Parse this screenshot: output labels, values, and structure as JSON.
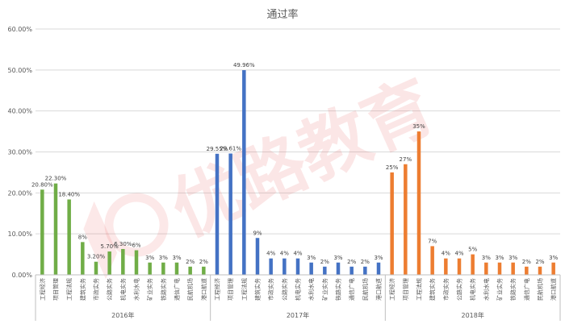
{
  "chart_data": {
    "type": "bar",
    "title": "通过率",
    "ylim": [
      0,
      60
    ],
    "y_ticks": [
      "0.00%",
      "10.00%",
      "20.00%",
      "30.00%",
      "40.00%",
      "50.00%",
      "60.00%"
    ],
    "grid": true,
    "legend": "none",
    "watermark": "优路教育",
    "groups": [
      {
        "name": "2016年",
        "color": "#70ad47",
        "categories": [
          "工程经济",
          "项目管理",
          "工程法规",
          "建筑实务",
          "市政实务",
          "公路实务",
          "机电实务",
          "水利水电",
          "矿业实务",
          "铁路实务",
          "通信广电",
          "民航机场",
          "港口航道"
        ],
        "values": [
          20.8,
          22.3,
          18.4,
          8,
          3.2,
          5.7,
          6.3,
          6,
          3,
          3,
          3,
          2,
          2
        ],
        "labels": [
          "20.80%",
          "22.30%",
          "18.40%",
          "8%",
          "3.20%",
          "5.70%",
          "6.30%",
          "6%",
          "3%",
          "3%",
          "3%",
          "2%",
          "2%"
        ]
      },
      {
        "name": "2017年",
        "color": "#4472c4",
        "categories": [
          "工程经济",
          "项目管理",
          "工程法规",
          "建筑实务",
          "市政实务",
          "公路实务",
          "机电实务",
          "水利水电",
          "矿业实务",
          "铁路实务",
          "通信广电",
          "民航机场",
          "港口航道"
        ],
        "values": [
          29.55,
          29.61,
          49.96,
          9,
          4,
          4,
          4,
          3,
          2,
          3,
          2,
          2,
          3
        ],
        "labels": [
          "29.55%",
          "29.61%",
          "49.96%",
          "9%",
          "4%",
          "4%",
          "4%",
          "3%",
          "2%",
          "3%",
          "2%",
          "2%",
          "3%"
        ]
      },
      {
        "name": "2018年",
        "color": "#ed7d31",
        "categories": [
          "工程经济",
          "项目管理",
          "工程法规",
          "建筑实务",
          "市政实务",
          "公路实务",
          "机电实务",
          "水利水电",
          "矿业实务",
          "铁路实务",
          "通信广电",
          "民航机场",
          "港口航道"
        ],
        "values": [
          25,
          27,
          35,
          7,
          4,
          4,
          5,
          3,
          3,
          3,
          2,
          2,
          3
        ],
        "labels": [
          "25%",
          "27%",
          "35%",
          "7%",
          "4%",
          "4%",
          "5%",
          "3%",
          "3%",
          "3%",
          "2%",
          "2%",
          "3%"
        ]
      }
    ]
  }
}
